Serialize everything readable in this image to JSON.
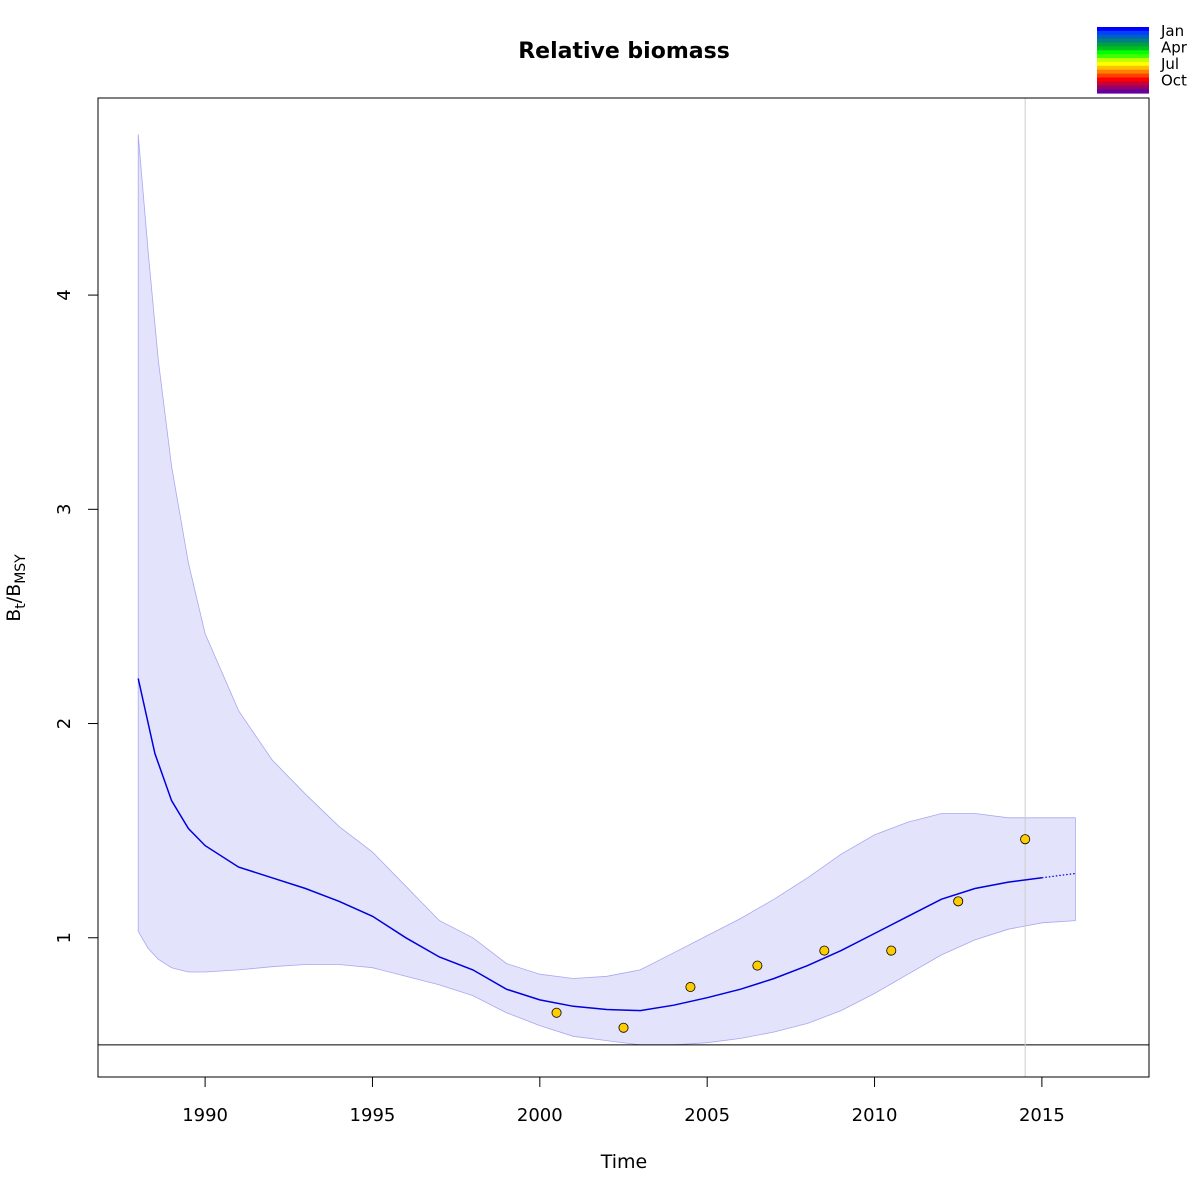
{
  "chart_data": {
    "type": "line",
    "title": "Relative biomass",
    "xlabel": "Time",
    "ylabel": {
      "base": "B",
      "sub1": "t",
      "sep": "/B",
      "sub2": "MSY"
    },
    "xlim": [
      1986.8,
      2018.2
    ],
    "ylim": [
      0.35,
      4.92
    ],
    "x_ticks": [
      "1990",
      "1995",
      "2000",
      "2005",
      "2010",
      "2015"
    ],
    "y_ticks": [
      "1",
      "2",
      "3",
      "4"
    ],
    "grid": false,
    "reference_line_y": 0.5,
    "vertical_line_x": 2014.5,
    "ci_color": "#e3e3fb",
    "ci_edge_color": "#a8a8f0",
    "line_color": "#0000dd",
    "point_color": "#ffcc00",
    "series": [
      {
        "role": "estimate",
        "x": [
          1988,
          1988.5,
          1989,
          1989.5,
          1990,
          1991,
          1992,
          1993,
          1994,
          1995,
          1996,
          1997,
          1998,
          1999,
          2000,
          2001,
          2002,
          2003,
          2004,
          2005,
          2006,
          2007,
          2008,
          2009,
          2010,
          2011,
          2012,
          2013,
          2014,
          2015
        ],
        "y": [
          2.21,
          1.86,
          1.64,
          1.51,
          1.43,
          1.33,
          1.28,
          1.23,
          1.17,
          1.1,
          1.0,
          0.91,
          0.85,
          0.76,
          0.71,
          0.68,
          0.665,
          0.66,
          0.685,
          0.72,
          0.76,
          0.81,
          0.87,
          0.94,
          1.02,
          1.1,
          1.18,
          1.23,
          1.26,
          1.28
        ]
      },
      {
        "role": "projection",
        "x": [
          2015,
          2015.5,
          2016
        ],
        "y": [
          1.28,
          1.29,
          1.3
        ]
      },
      {
        "role": "ci_upper",
        "x": [
          1988,
          1988.3,
          1988.6,
          1989,
          1989.5,
          1990,
          1991,
          1992,
          1993,
          1994,
          1995,
          1996,
          1997,
          1998,
          1999,
          2000,
          2001,
          2002,
          2003,
          2004,
          2005,
          2006,
          2007,
          2008,
          2009,
          2010,
          2011,
          2012,
          2013,
          2014,
          2015,
          2016
        ],
        "y": [
          4.75,
          4.2,
          3.7,
          3.2,
          2.75,
          2.42,
          2.06,
          1.83,
          1.67,
          1.52,
          1.4,
          1.24,
          1.08,
          1.0,
          0.88,
          0.83,
          0.81,
          0.82,
          0.85,
          0.93,
          1.01,
          1.09,
          1.18,
          1.28,
          1.39,
          1.48,
          1.54,
          1.58,
          1.58,
          1.56,
          1.56,
          1.56
        ]
      },
      {
        "role": "ci_lower",
        "x": [
          1988,
          1988.3,
          1988.6,
          1989,
          1989.5,
          1990,
          1991,
          1992,
          1993,
          1994,
          1995,
          1996,
          1997,
          1998,
          1999,
          2000,
          2001,
          2002,
          2003,
          2004,
          2005,
          2006,
          2007,
          2008,
          2009,
          2010,
          2011,
          2012,
          2013,
          2014,
          2015,
          2016
        ],
        "y": [
          1.03,
          0.95,
          0.9,
          0.86,
          0.84,
          0.84,
          0.85,
          0.865,
          0.875,
          0.875,
          0.86,
          0.82,
          0.78,
          0.73,
          0.65,
          0.59,
          0.54,
          0.52,
          0.5,
          0.5,
          0.51,
          0.53,
          0.56,
          0.6,
          0.66,
          0.74,
          0.83,
          0.92,
          0.99,
          1.04,
          1.07,
          1.08
        ]
      },
      {
        "role": "observations",
        "x": [
          2000.5,
          2002.5,
          2004.5,
          2006.5,
          2008.5,
          2010.5,
          2012.5,
          2014.5
        ],
        "y": [
          0.65,
          0.58,
          0.77,
          0.87,
          0.94,
          0.94,
          1.17,
          1.46
        ]
      }
    ],
    "legend": {
      "placement": "top-right",
      "labels": [
        "Jan",
        "Apr",
        "Jul",
        "Oct"
      ],
      "colors": [
        "#0000ff",
        "#0040ff",
        "#0060c0",
        "#008080",
        "#00a040",
        "#00c020",
        "#00ff00",
        "#40ff00",
        "#c0ff00",
        "#ffff00",
        "#ffc000",
        "#ff8000",
        "#ff4000",
        "#ff0000",
        "#cc0033",
        "#990066",
        "#660099"
      ]
    }
  }
}
